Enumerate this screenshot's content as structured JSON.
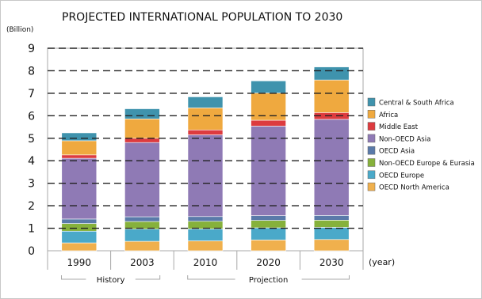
{
  "chart_data": {
    "type": "bar",
    "stacked": true,
    "title": "PROJECTED INTERNATIONAL POPULATION TO 2030",
    "ylabel": "(Billion)",
    "xlabel": "(year)",
    "ylim": [
      0,
      9
    ],
    "yticks": [
      "0",
      "1",
      "2",
      "3",
      "4",
      "5",
      "6",
      "7",
      "8",
      "9"
    ],
    "categories": [
      "1990",
      "2003",
      "2010",
      "2020",
      "2030"
    ],
    "groups": [
      {
        "label": "History",
        "categories": [
          "1990",
          "2003"
        ]
      },
      {
        "label": "Projection",
        "categories": [
          "2010",
          "2020",
          "2030"
        ]
      }
    ],
    "grid": "horizontal dashed",
    "legend_position": "right",
    "series": [
      {
        "name": "OECD North America",
        "color": "#f0b04d",
        "values": [
          0.35,
          0.42,
          0.44,
          0.48,
          0.5
        ]
      },
      {
        "name": "OECD Europe",
        "color": "#4aa9c9",
        "values": [
          0.52,
          0.54,
          0.53,
          0.54,
          0.54
        ]
      },
      {
        "name": "Non-OECD Europe & Eurasia",
        "color": "#86b13b",
        "values": [
          0.34,
          0.34,
          0.34,
          0.33,
          0.32
        ]
      },
      {
        "name": "OECD Asia",
        "color": "#5a7aa9",
        "values": [
          0.2,
          0.21,
          0.21,
          0.21,
          0.21
        ]
      },
      {
        "name": "Non-OECD Asia",
        "color": "#8f7ab5",
        "values": [
          2.7,
          3.3,
          3.63,
          3.98,
          4.27
        ]
      },
      {
        "name": "Middle East",
        "color": "#dd3b3f",
        "values": [
          0.15,
          0.19,
          0.22,
          0.26,
          0.3
        ]
      },
      {
        "name": "Africa",
        "color": "#efa93f",
        "values": [
          0.63,
          0.86,
          0.98,
          1.21,
          1.45
        ]
      },
      {
        "name": "Central & South Africa",
        "color": "#3f93ad",
        "values": [
          0.35,
          0.45,
          0.49,
          0.54,
          0.58
        ]
      }
    ]
  }
}
